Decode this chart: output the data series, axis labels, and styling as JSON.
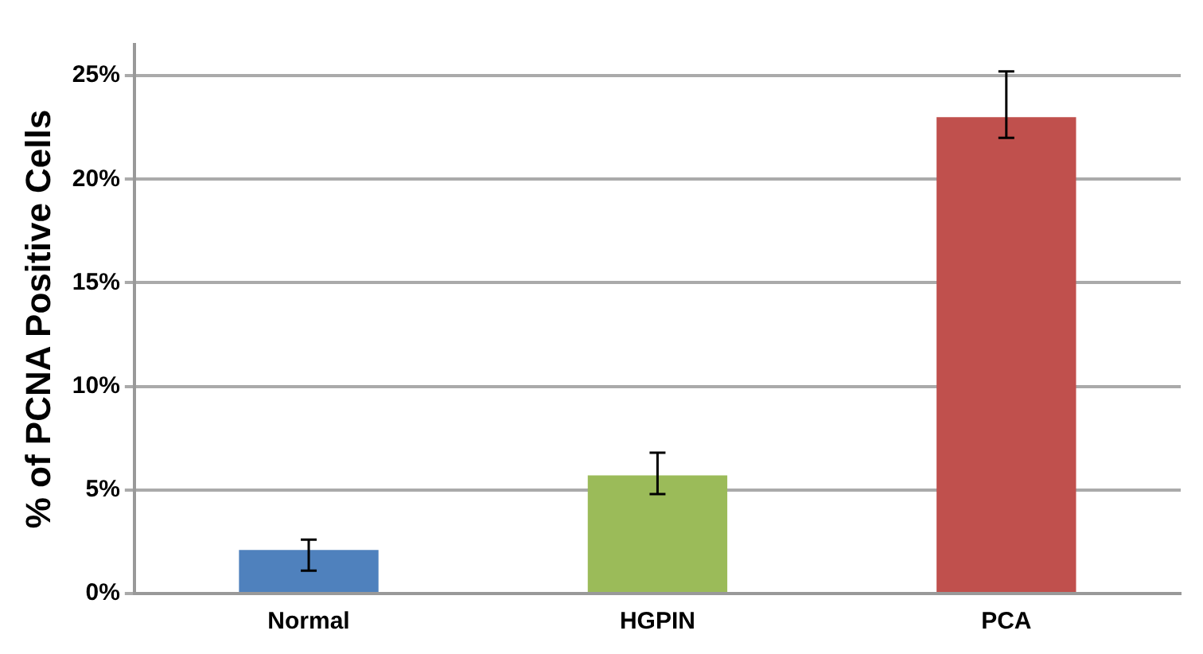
{
  "chart_data": {
    "type": "bar",
    "ylabel": "% of PCNA Positive Cells",
    "categories": [
      "Normal",
      "HGPIN",
      "PCA"
    ],
    "values": [
      2.1,
      5.7,
      23
    ],
    "colors": [
      "#4f81bd",
      "#9bbb59",
      "#c0504d"
    ],
    "errors": [
      [
        1.1,
        2.6
      ],
      [
        4.8,
        6.8
      ],
      [
        22.0,
        25.2
      ]
    ],
    "ylim": [
      0,
      26.5
    ],
    "yticks": [
      {
        "value": 0,
        "label": "0%"
      },
      {
        "value": 5,
        "label": "5%"
      },
      {
        "value": 10,
        "label": "10%"
      },
      {
        "value": 15,
        "label": "15%"
      },
      {
        "value": 20,
        "label": "20%"
      },
      {
        "value": 25,
        "label": "25%"
      }
    ],
    "grid": "y",
    "legend": false
  }
}
